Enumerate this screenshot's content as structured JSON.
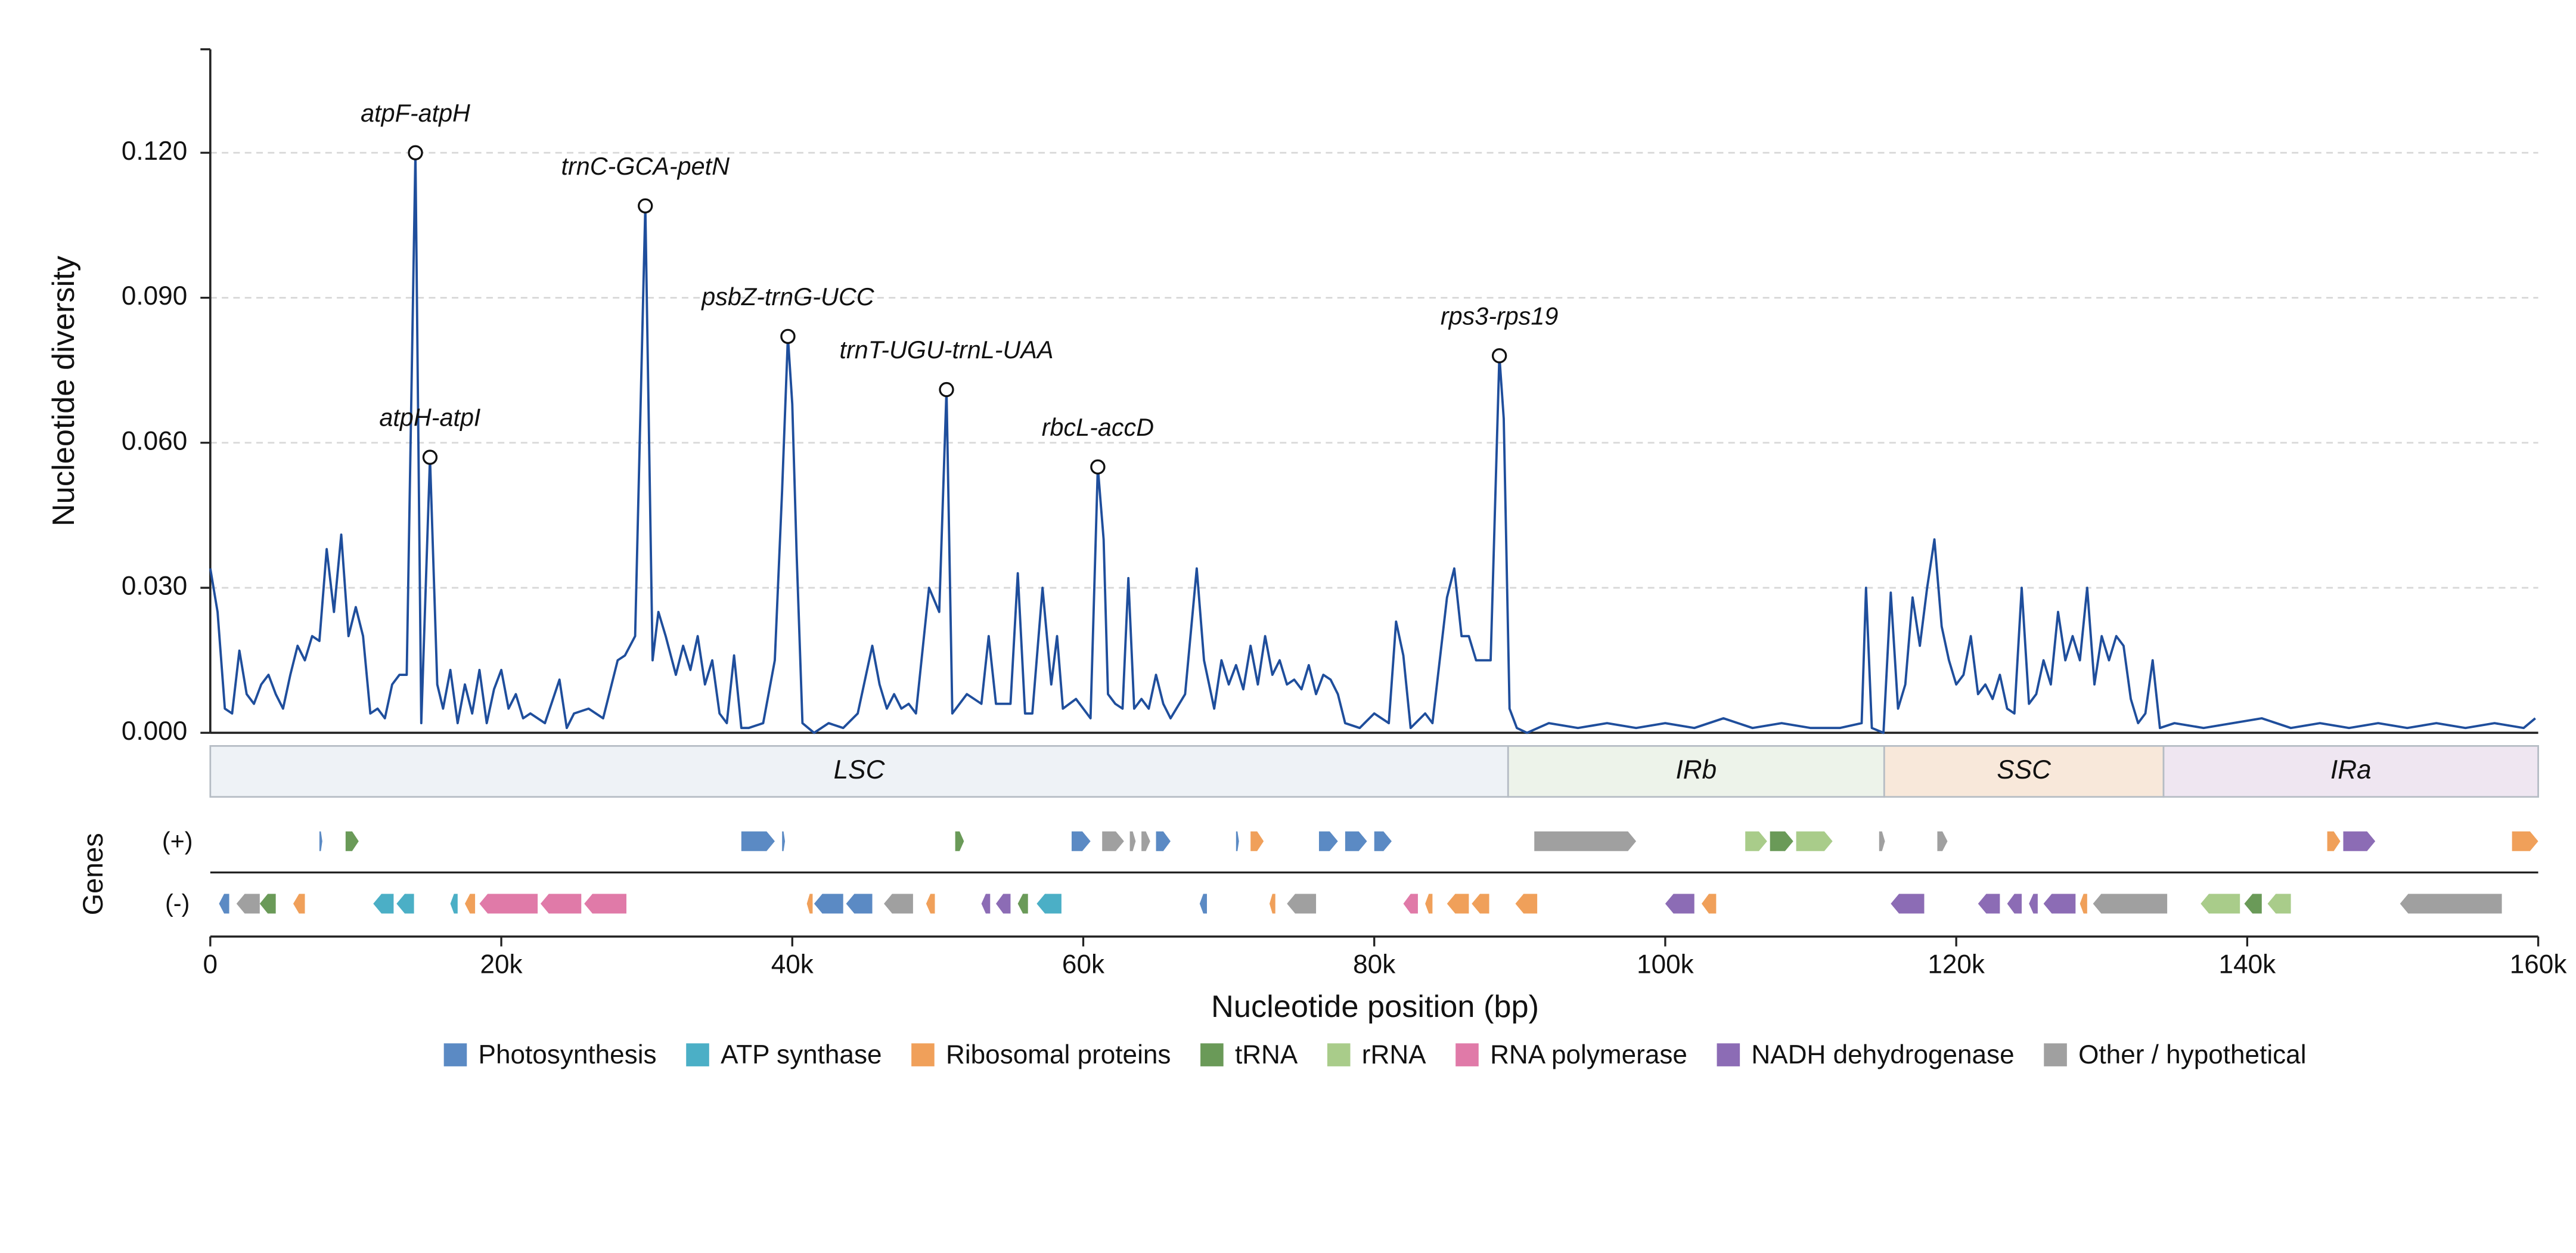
{
  "chart_data": {
    "type": "line",
    "y_label": "Nucleotide diversity",
    "x_label": "Nucleotide position (bp)",
    "genes_label": "Genes",
    "xlim": [
      0,
      160000
    ],
    "ylim": [
      0,
      0.1414
    ],
    "xticks": [
      {
        "value": 0,
        "label": "0"
      },
      {
        "value": 20000,
        "label": "20k"
      },
      {
        "value": 40000,
        "label": "40k"
      },
      {
        "value": 60000,
        "label": "60k"
      },
      {
        "value": 80000,
        "label": "80k"
      },
      {
        "value": 100000,
        "label": "100k"
      },
      {
        "value": 120000,
        "label": "120k"
      },
      {
        "value": 140000,
        "label": "140k"
      },
      {
        "value": 160000,
        "label": "160k"
      }
    ],
    "yticks": [
      {
        "value": 0,
        "label": "0.000"
      },
      {
        "value": 0.03,
        "label": "0.030"
      },
      {
        "value": 0.06,
        "label": "0.060"
      },
      {
        "value": 0.09,
        "label": "0.090"
      },
      {
        "value": 0.12,
        "label": "0.120"
      }
    ],
    "grid": true,
    "color": "#1f4e9c",
    "x": [
      0,
      500,
      1000,
      1500,
      2000,
      2500,
      3000,
      3500,
      4000,
      4500,
      5000,
      5500,
      6000,
      6500,
      7000,
      7500,
      8000,
      8500,
      9000,
      9500,
      10000,
      10500,
      11000,
      11500,
      12000,
      12500,
      13000,
      13500,
      14100,
      14500,
      15100,
      15600,
      16000,
      16500,
      17000,
      17500,
      18000,
      18500,
      19000,
      19500,
      20000,
      20500,
      21000,
      21500,
      22000,
      23000,
      24000,
      24500,
      25000,
      26000,
      27000,
      28000,
      28500,
      29200,
      29900,
      30400,
      30800,
      31300,
      32000,
      32500,
      33000,
      33500,
      34000,
      34500,
      35000,
      35500,
      36000,
      36500,
      37000,
      38000,
      38800,
      39300,
      39700,
      40000,
      40300,
      40700,
      41500,
      42500,
      43500,
      44500,
      45500,
      46000,
      46500,
      47000,
      47500,
      48000,
      48500,
      49400,
      50100,
      50600,
      51000,
      52000,
      53000,
      53500,
      54000,
      55000,
      55500,
      56000,
      56500,
      57200,
      57800,
      58200,
      58600,
      59500,
      60500,
      61000,
      61400,
      61700,
      62200,
      62700,
      63100,
      63500,
      64000,
      64500,
      65000,
      65500,
      66000,
      67000,
      67800,
      68300,
      69000,
      69500,
      70000,
      70500,
      71000,
      71500,
      72000,
      72500,
      73000,
      73500,
      74000,
      74500,
      75000,
      75500,
      76000,
      76500,
      77000,
      77500,
      78000,
      79000,
      80000,
      81000,
      81500,
      82000,
      82500,
      83500,
      84000,
      85000,
      85500,
      86000,
      86500,
      87000,
      88000,
      88600,
      88900,
      89300,
      89800,
      90500,
      92000,
      94000,
      96000,
      98000,
      100000,
      102000,
      104000,
      106000,
      108000,
      110000,
      112000,
      113500,
      113800,
      114200,
      115000,
      115500,
      116000,
      116500,
      117000,
      117500,
      118000,
      118500,
      119000,
      119500,
      120000,
      120500,
      121000,
      121500,
      122000,
      122500,
      123000,
      123500,
      124000,
      124500,
      125000,
      125500,
      126000,
      126500,
      127000,
      127500,
      128000,
      128500,
      129000,
      129500,
      130000,
      130500,
      131000,
      131500,
      132000,
      132500,
      133000,
      133500,
      134000,
      135000,
      137000,
      139000,
      141000,
      143000,
      145000,
      147000,
      149000,
      151000,
      153000,
      155000,
      157000,
      159000,
      159800
    ],
    "values": [
      0.034,
      0.025,
      0.005,
      0.004,
      0.017,
      0.008,
      0.006,
      0.01,
      0.012,
      0.008,
      0.005,
      0.012,
      0.018,
      0.015,
      0.02,
      0.019,
      0.038,
      0.025,
      0.041,
      0.02,
      0.026,
      0.02,
      0.004,
      0.005,
      0.003,
      0.01,
      0.012,
      0.012,
      0.12,
      0.002,
      0.057,
      0.01,
      0.005,
      0.013,
      0.002,
      0.01,
      0.004,
      0.013,
      0.002,
      0.009,
      0.013,
      0.005,
      0.008,
      0.003,
      0.004,
      0.002,
      0.011,
      0.001,
      0.004,
      0.005,
      0.003,
      0.015,
      0.016,
      0.02,
      0.109,
      0.015,
      0.025,
      0.02,
      0.012,
      0.018,
      0.013,
      0.02,
      0.01,
      0.015,
      0.004,
      0.002,
      0.016,
      0.001,
      0.001,
      0.002,
      0.015,
      0.05,
      0.082,
      0.068,
      0.037,
      0.002,
      0,
      0.002,
      0.001,
      0.004,
      0.018,
      0.01,
      0.005,
      0.008,
      0.005,
      0.006,
      0.004,
      0.03,
      0.025,
      0.071,
      0.004,
      0.008,
      0.006,
      0.02,
      0.006,
      0.006,
      0.033,
      0.004,
      0.004,
      0.03,
      0.01,
      0.02,
      0.005,
      0.007,
      0.003,
      0.055,
      0.04,
      0.008,
      0.006,
      0.005,
      0.032,
      0.005,
      0.007,
      0.005,
      0.012,
      0.006,
      0.003,
      0.008,
      0.034,
      0.015,
      0.005,
      0.015,
      0.01,
      0.014,
      0.009,
      0.018,
      0.01,
      0.02,
      0.012,
      0.015,
      0.01,
      0.011,
      0.009,
      0.014,
      0.008,
      0.012,
      0.011,
      0.008,
      0.002,
      0.001,
      0.004,
      0.002,
      0.023,
      0.016,
      0.001,
      0.004,
      0.002,
      0.028,
      0.034,
      0.02,
      0.02,
      0.015,
      0.015,
      0.078,
      0.065,
      0.005,
      0.001,
      0,
      0.002,
      0.001,
      0.002,
      0.001,
      0.002,
      0.001,
      0.003,
      0.001,
      0.002,
      0.001,
      0.001,
      0.002,
      0.03,
      0.001,
      0,
      0.029,
      0.005,
      0.01,
      0.028,
      0.018,
      0.03,
      0.04,
      0.022,
      0.015,
      0.01,
      0.012,
      0.02,
      0.008,
      0.01,
      0.007,
      0.012,
      0.005,
      0.004,
      0.03,
      0.006,
      0.008,
      0.015,
      0.01,
      0.025,
      0.015,
      0.02,
      0.015,
      0.03,
      0.01,
      0.02,
      0.015,
      0.02,
      0.018,
      0.007,
      0.002,
      0.004,
      0.015,
      0.001,
      0.002,
      0.001,
      0.002,
      0.003,
      0.001,
      0.002,
      0.001,
      0.002,
      0.001,
      0.002,
      0.001,
      0.002,
      0.001,
      0.003
    ],
    "annotations": [
      {
        "text": "atpF-atpH",
        "x": 14100,
        "y": 0.12
      },
      {
        "text": "atpH-atpI",
        "x": 15100,
        "y": 0.057
      },
      {
        "text": "trnC-GCA-petN",
        "x": 29900,
        "y": 0.109
      },
      {
        "text": "psbZ-trnG-UCC",
        "x": 39700,
        "y": 0.082
      },
      {
        "text": "trnT-UGU-trnL-UAA",
        "x": 50600,
        "y": 0.071
      },
      {
        "text": "rbcL-accD",
        "x": 61000,
        "y": 0.055
      },
      {
        "text": "rps3-rps19",
        "x": 88600,
        "y": 0.078
      }
    ],
    "regions": [
      {
        "name": "LSC",
        "start": 0,
        "end": 89200,
        "color": "#eef2f6"
      },
      {
        "name": "IRb",
        "start": 89200,
        "end": 115050,
        "color": "#edf3ea"
      },
      {
        "name": "SSC",
        "start": 115050,
        "end": 134250,
        "color": "#f8e8da"
      },
      {
        "name": "IRa",
        "start": 134250,
        "end": 160000,
        "color": "#efe6f1"
      }
    ],
    "tracks": {
      "plus": "(+)",
      "minus": "(-)"
    },
    "gene_series": [
      {
        "name": "Photosynthesis",
        "color": "#5b8ac4",
        "plus": [
          [
            7500,
            7700
          ],
          [
            36500,
            38800
          ],
          [
            39300,
            39500
          ],
          [
            59200,
            60500
          ],
          [
            65000,
            66000
          ],
          [
            70500,
            70700
          ],
          [
            76200,
            77500
          ],
          [
            78000,
            79500
          ],
          [
            80000,
            81200
          ]
        ],
        "minus": [
          [
            600,
            1300
          ],
          [
            41500,
            43500
          ],
          [
            43700,
            45500
          ],
          [
            68000,
            68500
          ]
        ]
      },
      {
        "name": "ATP synthase",
        "color": "#4bafc6",
        "plus": [],
        "minus": [
          [
            11200,
            12600
          ],
          [
            12800,
            14000
          ],
          [
            16500,
            17000
          ],
          [
            56800,
            58500
          ]
        ]
      },
      {
        "name": "Ribosomal proteins",
        "color": "#f0a05a",
        "plus": [
          [
            71500,
            72400
          ],
          [
            145500,
            146400
          ],
          [
            158200,
            160000
          ]
        ],
        "minus": [
          [
            5700,
            6500
          ],
          [
            17500,
            18200
          ],
          [
            41000,
            41400
          ],
          [
            49200,
            49800
          ],
          [
            72800,
            73200
          ],
          [
            83500,
            84000
          ],
          [
            85000,
            86500
          ],
          [
            86700,
            87900
          ],
          [
            89700,
            91200
          ],
          [
            102500,
            103500
          ],
          [
            128500,
            129000
          ]
        ]
      },
      {
        "name": "tRNA",
        "color": "#6a9a58",
        "plus": [
          [
            9300,
            10200
          ],
          [
            51200,
            51800
          ],
          [
            107200,
            108800
          ]
        ],
        "minus": [
          [
            3400,
            4500
          ],
          [
            55500,
            56200
          ],
          [
            139800,
            141000
          ]
        ]
      },
      {
        "name": "rRNA",
        "color": "#a9cc8a",
        "plus": [
          [
            105500,
            107000
          ],
          [
            109000,
            111500
          ]
        ],
        "minus": [
          [
            136800,
            139500
          ],
          [
            141400,
            143000
          ]
        ]
      },
      {
        "name": "RNA polymerase",
        "color": "#e07aa8",
        "plus": [],
        "minus": [
          [
            18500,
            22500
          ],
          [
            22700,
            25500
          ],
          [
            25700,
            28600
          ],
          [
            82000,
            83000
          ]
        ]
      },
      {
        "name": "NADH dehydrogenase",
        "color": "#8c6cb5",
        "plus": [
          [
            146600,
            148800
          ]
        ],
        "minus": [
          [
            53000,
            53600
          ],
          [
            54000,
            55000
          ],
          [
            100000,
            102000
          ],
          [
            115500,
            117800
          ],
          [
            121500,
            123000
          ],
          [
            123500,
            124500
          ],
          [
            125000,
            125600
          ],
          [
            126000,
            128200
          ]
        ]
      },
      {
        "name": "Other / hypothetical",
        "color": "#a0a0a0",
        "plus": [
          [
            61300,
            62800
          ],
          [
            63200,
            63600
          ],
          [
            64000,
            64600
          ],
          [
            91000,
            98000
          ],
          [
            114700,
            115100
          ],
          [
            118700,
            119400
          ]
        ],
        "minus": [
          [
            1800,
            3400
          ],
          [
            46300,
            48300
          ],
          [
            74000,
            76000
          ],
          [
            129400,
            134500
          ],
          [
            150500,
            157500
          ]
        ]
      }
    ]
  }
}
